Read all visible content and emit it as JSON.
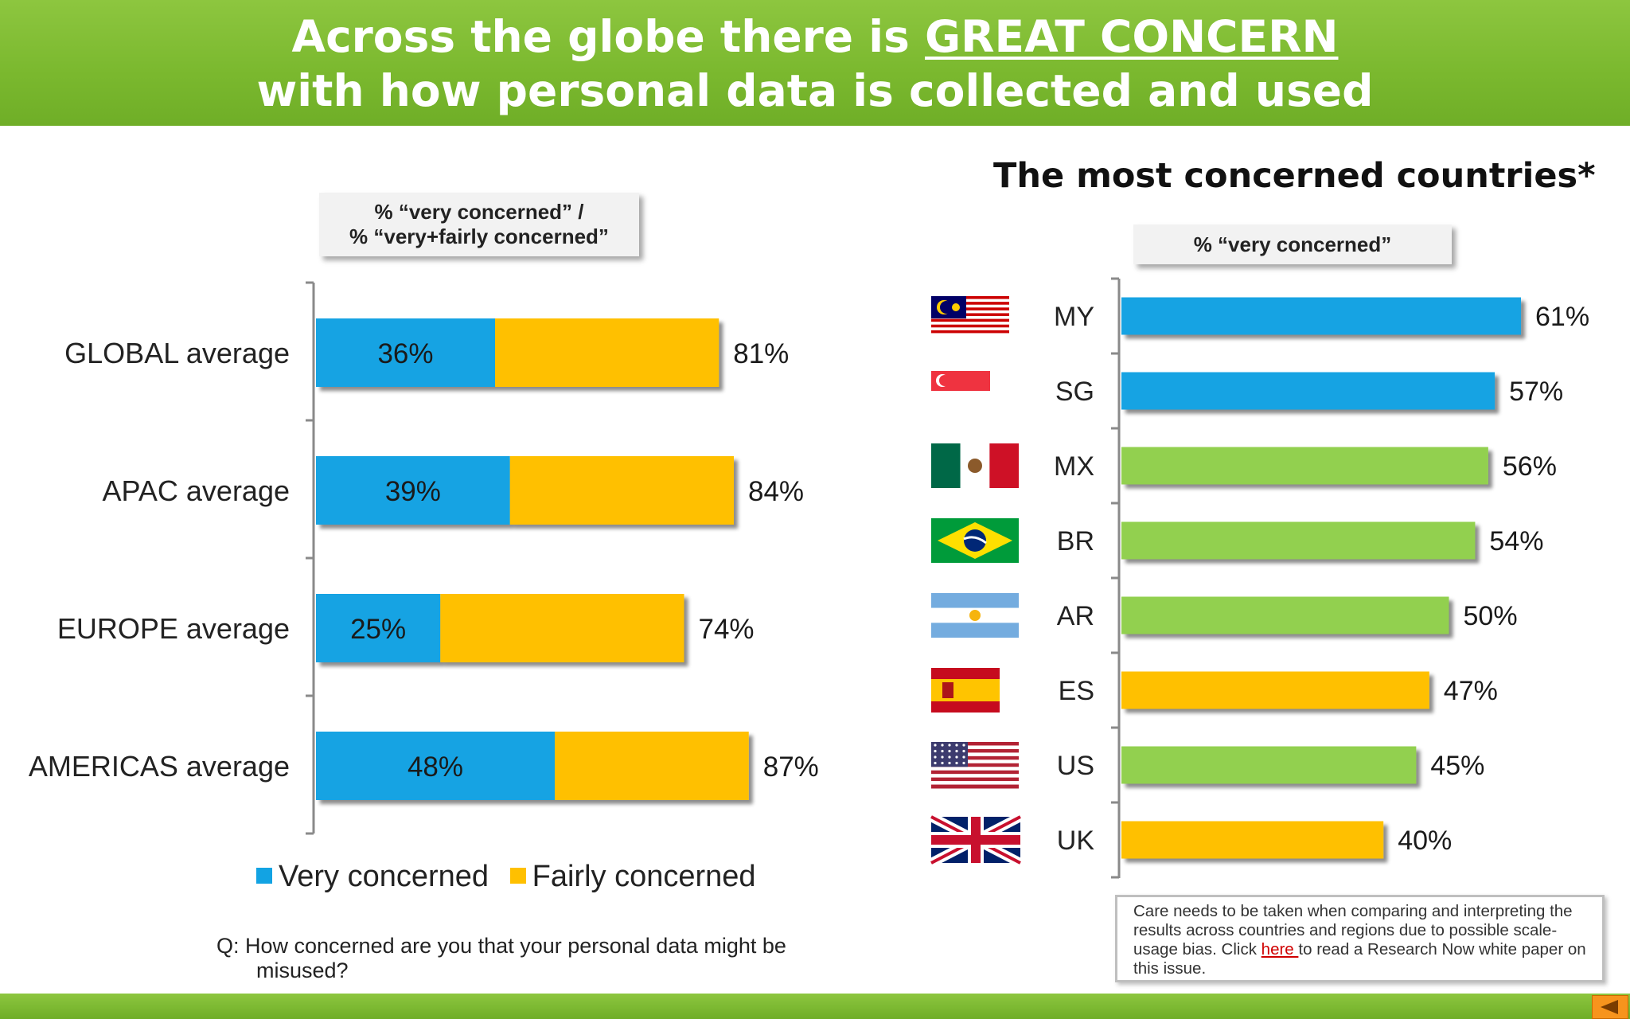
{
  "header": {
    "title_line1_prefix": "Across the globe there is ",
    "title_line1_emphasis": "GREAT CONCERN",
    "title_line2": "with how personal data is collected and used"
  },
  "left_callout": {
    "line1": "% “very concerned” /",
    "line2": "% “very+fairly concerned”"
  },
  "right_title": "The most concerned countries*",
  "right_callout": "% “very concerned”",
  "legend": {
    "very": "Very concerned",
    "fairly": "Fairly concerned"
  },
  "question": {
    "line1": "Q:  How concerned are you that your personal data might be",
    "line2": "misused?"
  },
  "note": {
    "before": "Care needs to be taken when comparing and interpreting the results across countries and regions due to possible scale-usage bias. Click ",
    "link": "here ",
    "after": "to read a Research Now white paper on this issue."
  },
  "colors": {
    "very": "#12a3e3",
    "fairly": "#ffc000",
    "green": "#92d050",
    "header_green": "#7ab82e",
    "nav_orange": "#f7941d"
  },
  "chart_data": [
    {
      "type": "bar",
      "orientation": "horizontal",
      "stacked": true,
      "categories": [
        "GLOBAL average",
        "APAC average",
        "EUROPE average",
        "AMERICAS average"
      ],
      "series": [
        {
          "name": "Very concerned",
          "values": [
            36,
            39,
            25,
            48
          ],
          "labels": [
            "36%",
            "39%",
            "25%",
            "48%"
          ]
        },
        {
          "name": "Fairly concerned",
          "values": [
            45,
            45,
            49,
            39
          ]
        }
      ],
      "totals": [
        81,
        84,
        74,
        87
      ],
      "total_labels": [
        "81%",
        "84%",
        "74%",
        "87%"
      ],
      "xlim": [
        0,
        100
      ],
      "legend": "bottom"
    },
    {
      "type": "bar",
      "orientation": "horizontal",
      "categories": [
        "MY",
        "SG",
        "MX",
        "BR",
        "AR",
        "ES",
        "US",
        "UK"
      ],
      "values": [
        61,
        57,
        56,
        54,
        50,
        47,
        45,
        40
      ],
      "labels": [
        "61%",
        "57%",
        "56%",
        "54%",
        "50%",
        "47%",
        "45%",
        "40%"
      ],
      "bar_colors": [
        "#12a3e3",
        "#12a3e3",
        "#92d050",
        "#92d050",
        "#92d050",
        "#ffc000",
        "#92d050",
        "#ffc000"
      ],
      "flags": [
        "malaysia-flag-icon",
        "singapore-flag-icon",
        "mexico-flag-icon",
        "brazil-flag-icon",
        "argentina-flag-icon",
        "spain-flag-icon",
        "usa-flag-icon",
        "uk-flag-icon"
      ],
      "xlim": [
        0,
        100
      ]
    }
  ]
}
